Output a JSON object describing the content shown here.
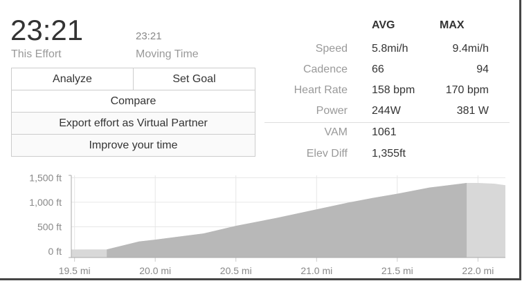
{
  "effort": {
    "time": "23:21",
    "time_label": "This Effort",
    "moving_time": "23:21",
    "moving_label": "Moving Time"
  },
  "buttons": {
    "analyze": "Analyze",
    "set_goal": "Set Goal",
    "compare": "Compare",
    "export": "Export effort as Virtual Partner",
    "improve": "Improve your time"
  },
  "stats": {
    "avg_header": "AVG",
    "max_header": "MAX",
    "rows": [
      {
        "label": "Speed",
        "avg": "5.8mi/h",
        "max": "9.4mi/h"
      },
      {
        "label": "Cadence",
        "avg": "66",
        "max": "94"
      },
      {
        "label": "Heart Rate",
        "avg": "158 bpm",
        "max": "170 bpm"
      },
      {
        "label": "Power",
        "avg": "244W",
        "max": "381 W"
      }
    ],
    "extra": [
      {
        "label": "VAM",
        "avg": "1061"
      },
      {
        "label": "Elev Diff",
        "avg": "1,355ft"
      }
    ]
  },
  "chart_data": {
    "type": "area",
    "xlabel": "",
    "ylabel": "",
    "xlim": [
      19.48,
      22.17
    ],
    "ylim": [
      -126,
      1547
    ],
    "x_ticks": [
      19.5,
      20.0,
      20.5,
      21.0,
      21.5,
      22.0
    ],
    "x_tick_labels": [
      "19.5 mi",
      "20.0 mi",
      "20.5 mi",
      "21.0 mi",
      "21.5 mi",
      "22.0 mi"
    ],
    "y_ticks": [
      0,
      500,
      1000,
      1500
    ],
    "y_tick_labels": [
      "0 ft",
      "500 ft",
      "1,000 ft",
      "1,500 ft"
    ],
    "grid": true,
    "highlight_range": [
      19.7,
      21.93
    ],
    "colors": {
      "highlight": "#b8b8b8",
      "context": "#d8d8d8"
    },
    "points": [
      [
        19.48,
        37
      ],
      [
        19.7,
        40
      ],
      [
        19.9,
        200
      ],
      [
        20.0,
        238
      ],
      [
        20.3,
        364
      ],
      [
        20.5,
        519
      ],
      [
        20.75,
        678
      ],
      [
        20.9,
        785
      ],
      [
        21.0,
        855
      ],
      [
        21.2,
        995
      ],
      [
        21.35,
        1089
      ],
      [
        21.5,
        1173
      ],
      [
        21.7,
        1299
      ],
      [
        21.93,
        1393
      ],
      [
        22.0,
        1393
      ],
      [
        22.1,
        1379
      ],
      [
        22.17,
        1346
      ]
    ]
  }
}
